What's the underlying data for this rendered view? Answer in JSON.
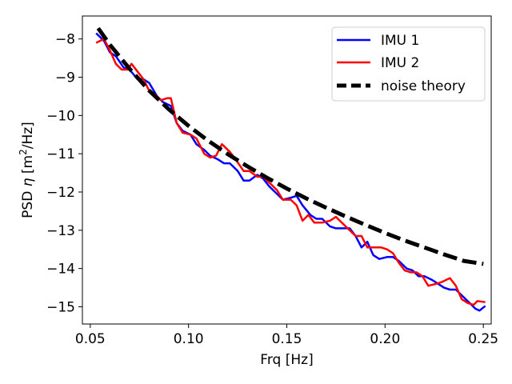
{
  "chart_data": {
    "type": "line",
    "xlabel": "Frq [Hz]",
    "ylabel_parts": [
      "PSD ",
      "η",
      " [m",
      "2",
      "/Hz]"
    ],
    "xlim": [
      0.046,
      0.254
    ],
    "ylim": [
      -15.45,
      -7.4
    ],
    "xticks": [
      0.05,
      0.1,
      0.15,
      0.2,
      0.25
    ],
    "xtick_labels": [
      "0.05",
      "0.10",
      "0.15",
      "0.20",
      "0.25"
    ],
    "yticks": [
      -8,
      -9,
      -10,
      -11,
      -12,
      -13,
      -14,
      -15
    ],
    "ytick_labels": [
      "−8",
      "−9",
      "−10",
      "−11",
      "−12",
      "−13",
      "−14",
      "−15"
    ],
    "legend_position": "top-right",
    "series": [
      {
        "name": "IMU 1",
        "color": "#0000ff",
        "style": "solid",
        "points": [
          [
            0.053,
            -7.85
          ],
          [
            0.057,
            -8.05
          ],
          [
            0.06,
            -8.35
          ],
          [
            0.063,
            -8.45
          ],
          [
            0.067,
            -8.75
          ],
          [
            0.07,
            -8.8
          ],
          [
            0.074,
            -9.05
          ],
          [
            0.077,
            -9.05
          ],
          [
            0.08,
            -9.15
          ],
          [
            0.084,
            -9.5
          ],
          [
            0.087,
            -9.65
          ],
          [
            0.091,
            -9.75
          ],
          [
            0.094,
            -10.2
          ],
          [
            0.097,
            -10.4
          ],
          [
            0.101,
            -10.5
          ],
          [
            0.104,
            -10.75
          ],
          [
            0.108,
            -10.9
          ],
          [
            0.111,
            -11.05
          ],
          [
            0.115,
            -11.15
          ],
          [
            0.118,
            -11.25
          ],
          [
            0.121,
            -11.25
          ],
          [
            0.125,
            -11.45
          ],
          [
            0.128,
            -11.7
          ],
          [
            0.131,
            -11.7
          ],
          [
            0.135,
            -11.55
          ],
          [
            0.138,
            -11.65
          ],
          [
            0.141,
            -11.85
          ],
          [
            0.145,
            -12.05
          ],
          [
            0.148,
            -12.2
          ],
          [
            0.152,
            -12.15
          ],
          [
            0.155,
            -12.1
          ],
          [
            0.158,
            -12.35
          ],
          [
            0.162,
            -12.6
          ],
          [
            0.165,
            -12.7
          ],
          [
            0.168,
            -12.7
          ],
          [
            0.172,
            -12.9
          ],
          [
            0.175,
            -12.95
          ],
          [
            0.179,
            -12.95
          ],
          [
            0.182,
            -12.95
          ],
          [
            0.185,
            -13.15
          ],
          [
            0.188,
            -13.45
          ],
          [
            0.191,
            -13.3
          ],
          [
            0.194,
            -13.65
          ],
          [
            0.197,
            -13.75
          ],
          [
            0.201,
            -13.7
          ],
          [
            0.204,
            -13.7
          ],
          [
            0.207,
            -13.8
          ],
          [
            0.211,
            -14.0
          ],
          [
            0.214,
            -14.05
          ],
          [
            0.217,
            -14.2
          ],
          [
            0.22,
            -14.2
          ],
          [
            0.224,
            -14.3
          ],
          [
            0.227,
            -14.4
          ],
          [
            0.23,
            -14.5
          ],
          [
            0.233,
            -14.55
          ],
          [
            0.236,
            -14.55
          ],
          [
            0.24,
            -14.75
          ],
          [
            0.243,
            -14.9
          ],
          [
            0.246,
            -15.05
          ],
          [
            0.248,
            -15.1
          ],
          [
            0.251,
            -14.98
          ]
        ]
      },
      {
        "name": "IMU 2",
        "color": "#ff0000",
        "style": "solid",
        "points": [
          [
            0.053,
            -8.1
          ],
          [
            0.057,
            -8.0
          ],
          [
            0.06,
            -8.3
          ],
          [
            0.063,
            -8.65
          ],
          [
            0.066,
            -8.8
          ],
          [
            0.069,
            -8.8
          ],
          [
            0.071,
            -8.65
          ],
          [
            0.074,
            -8.85
          ],
          [
            0.077,
            -9.05
          ],
          [
            0.08,
            -9.35
          ],
          [
            0.083,
            -9.45
          ],
          [
            0.086,
            -9.6
          ],
          [
            0.089,
            -9.55
          ],
          [
            0.091,
            -9.55
          ],
          [
            0.094,
            -10.2
          ],
          [
            0.097,
            -10.45
          ],
          [
            0.101,
            -10.5
          ],
          [
            0.104,
            -10.6
          ],
          [
            0.108,
            -11.0
          ],
          [
            0.111,
            -11.1
          ],
          [
            0.114,
            -11.05
          ],
          [
            0.117,
            -10.75
          ],
          [
            0.121,
            -10.95
          ],
          [
            0.124,
            -11.15
          ],
          [
            0.128,
            -11.45
          ],
          [
            0.131,
            -11.45
          ],
          [
            0.135,
            -11.6
          ],
          [
            0.138,
            -11.6
          ],
          [
            0.141,
            -11.75
          ],
          [
            0.145,
            -11.95
          ],
          [
            0.148,
            -12.2
          ],
          [
            0.152,
            -12.2
          ],
          [
            0.155,
            -12.35
          ],
          [
            0.158,
            -12.75
          ],
          [
            0.161,
            -12.6
          ],
          [
            0.164,
            -12.8
          ],
          [
            0.168,
            -12.8
          ],
          [
            0.172,
            -12.75
          ],
          [
            0.175,
            -12.65
          ],
          [
            0.179,
            -12.85
          ],
          [
            0.182,
            -13.0
          ],
          [
            0.185,
            -13.15
          ],
          [
            0.188,
            -13.15
          ],
          [
            0.191,
            -13.45
          ],
          [
            0.194,
            -13.45
          ],
          [
            0.198,
            -13.45
          ],
          [
            0.201,
            -13.5
          ],
          [
            0.204,
            -13.6
          ],
          [
            0.207,
            -13.85
          ],
          [
            0.21,
            -14.05
          ],
          [
            0.213,
            -14.1
          ],
          [
            0.216,
            -14.1
          ],
          [
            0.219,
            -14.2
          ],
          [
            0.222,
            -14.45
          ],
          [
            0.226,
            -14.4
          ],
          [
            0.229,
            -14.35
          ],
          [
            0.233,
            -14.25
          ],
          [
            0.236,
            -14.45
          ],
          [
            0.239,
            -14.8
          ],
          [
            0.242,
            -14.9
          ],
          [
            0.245,
            -14.95
          ],
          [
            0.247,
            -14.85
          ],
          [
            0.251,
            -14.88
          ]
        ]
      },
      {
        "name": "noise theory",
        "color": "#000000",
        "style": "dashed",
        "points": [
          [
            0.054,
            -7.72
          ],
          [
            0.06,
            -8.15
          ],
          [
            0.07,
            -8.78
          ],
          [
            0.08,
            -9.35
          ],
          [
            0.09,
            -9.84
          ],
          [
            0.1,
            -10.27
          ],
          [
            0.11,
            -10.66
          ],
          [
            0.12,
            -11.01
          ],
          [
            0.13,
            -11.33
          ],
          [
            0.14,
            -11.63
          ],
          [
            0.15,
            -11.91
          ],
          [
            0.16,
            -12.17
          ],
          [
            0.17,
            -12.41
          ],
          [
            0.18,
            -12.64
          ],
          [
            0.19,
            -12.86
          ],
          [
            0.2,
            -13.07
          ],
          [
            0.21,
            -13.27
          ],
          [
            0.22,
            -13.45
          ],
          [
            0.23,
            -13.63
          ],
          [
            0.24,
            -13.8
          ],
          [
            0.25,
            -13.88
          ]
        ]
      }
    ]
  }
}
